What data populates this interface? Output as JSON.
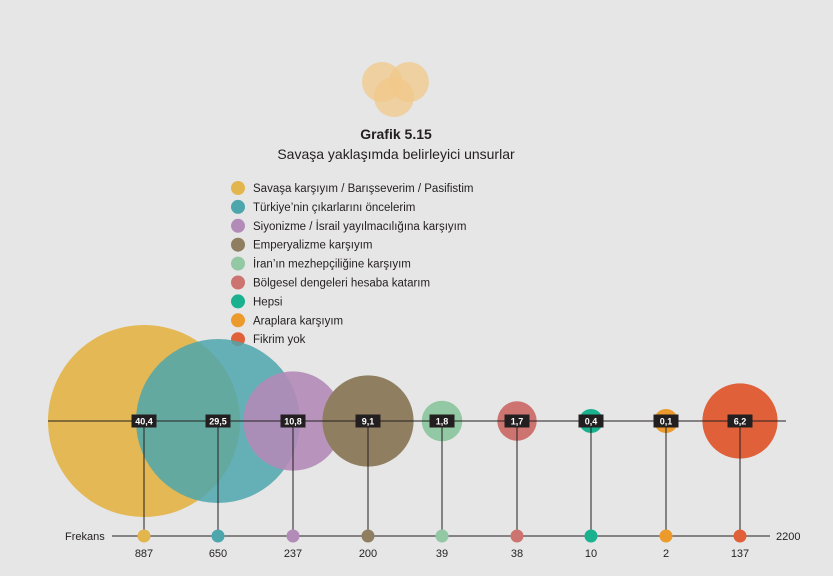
{
  "chart_data": {
    "type": "bubble",
    "title": "Grafik 5.15",
    "subtitle": "Savaşa yaklaşımda belirleyici unsurlar",
    "frequency_label": "Frekans",
    "total": "2200",
    "categories": [
      "Savaşa karşıyım / Barışseverim / Pasifistim",
      "Türkiye’nin çıkarlarını öncelerim",
      "Siyonizme / İsrail yayılmacılığına karşıyım",
      "Emperyalizme karşıyım",
      "İran’ın mezhepçiliğine karşıyım",
      "Bölgesel dengeleri hesaba katarım",
      "Hepsi",
      "Araplara karşıyım",
      "Fikrim yok"
    ],
    "values": [
      40.4,
      29.5,
      10.8,
      9.1,
      1.8,
      1.7,
      0.4,
      0.1,
      6.2
    ],
    "value_labels": [
      "40,4",
      "29,5",
      "10,8",
      "9,1",
      "1,8",
      "1,7",
      "0,4",
      "0,1",
      "6,2"
    ],
    "frequencies": [
      887,
      650,
      237,
      200,
      39,
      38,
      10,
      2,
      137
    ],
    "frequency_labels": [
      "887",
      "650",
      "237",
      "200",
      "39",
      "38",
      "10",
      "2",
      "137"
    ],
    "colors": [
      "#e3b54d",
      "#4ea6ad",
      "#b28bb8",
      "#8f7e60",
      "#93c8a4",
      "#cd7470",
      "#1ab18f",
      "#ec9a2c",
      "#e0603a"
    ],
    "bubble_opacity": [
      0.95,
      0.85,
      0.9,
      1,
      1,
      1,
      1,
      1,
      1
    ],
    "legend_position": "top-center"
  }
}
